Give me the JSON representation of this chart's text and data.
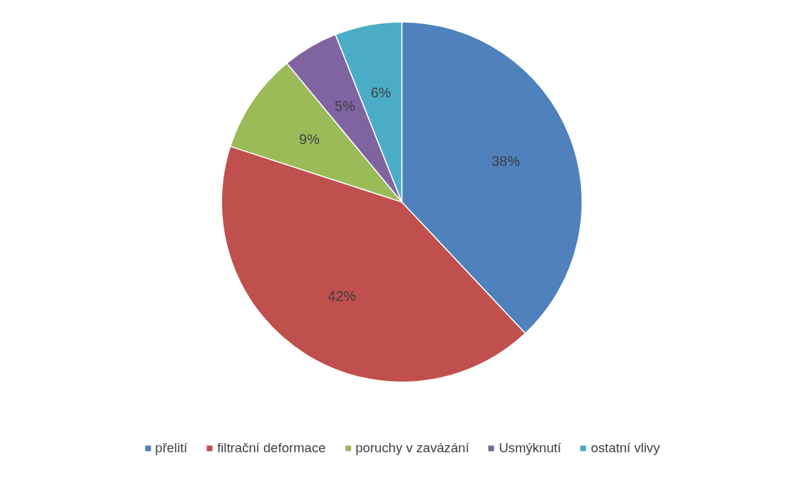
{
  "chart_data": {
    "type": "pie",
    "categories": [
      "přelití",
      "filtrační deformace",
      "poruchy v zavázání",
      "Usmýknutí",
      "ostatní vlivy"
    ],
    "values": [
      38,
      42,
      9,
      5,
      6
    ],
    "colors": [
      "#4f81bd",
      "#c0504d",
      "#9bbb59",
      "#8064a2",
      "#4bacc6"
    ],
    "value_labels": [
      "38%",
      "42%",
      "9%",
      "5%",
      "6%"
    ],
    "legend": "bottom"
  }
}
